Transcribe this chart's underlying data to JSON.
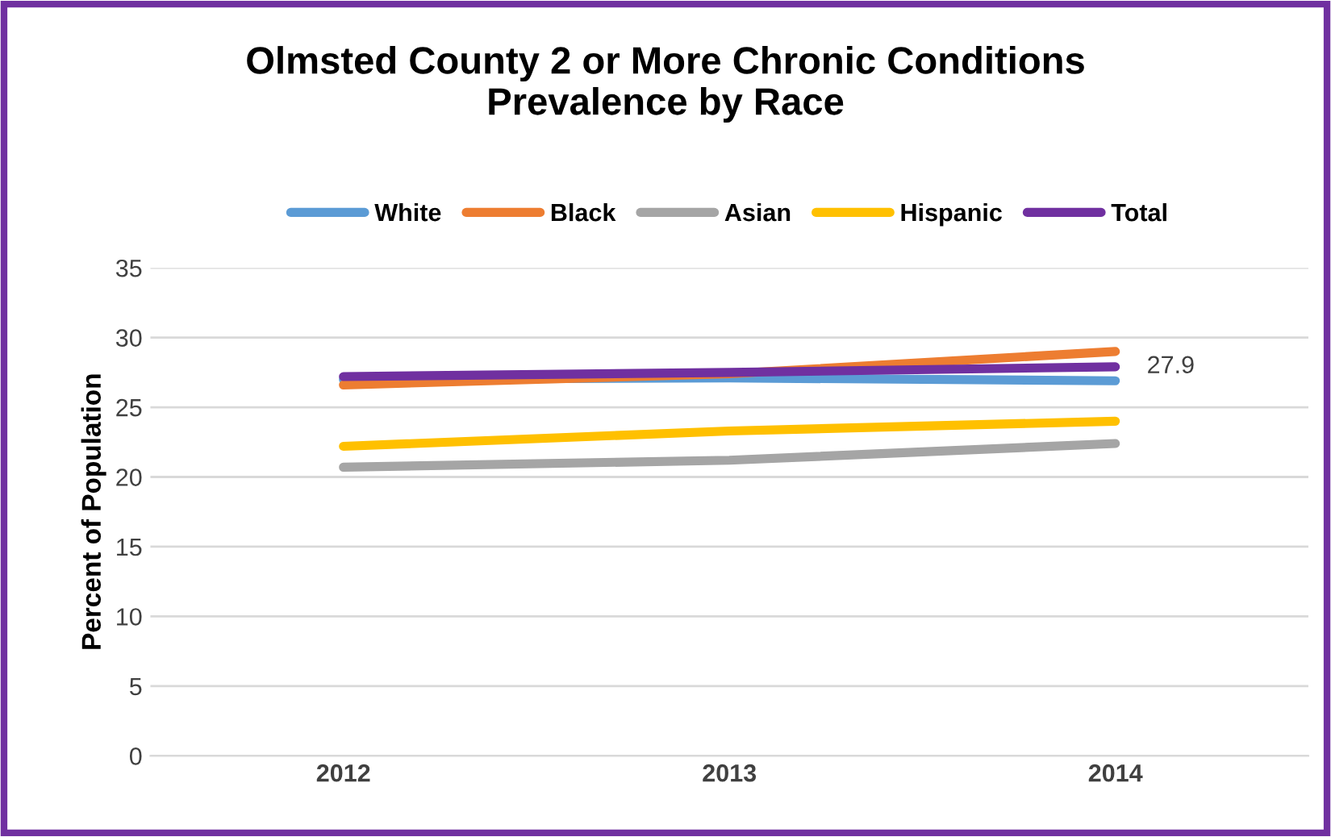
{
  "chart_data": {
    "type": "line",
    "title": "Olmsted County 2 or More Chronic Conditions\nPrevalence by Race",
    "ylabel": "Percent of Population",
    "categories": [
      "2012",
      "2013",
      "2014"
    ],
    "series": [
      {
        "name": "White",
        "color": "#5b9bd5",
        "values": [
          27.0,
          27.1,
          26.9
        ]
      },
      {
        "name": "Black",
        "color": "#ed7d31",
        "values": [
          26.6,
          27.4,
          29.0
        ]
      },
      {
        "name": "Asian",
        "color": "#a5a5a5",
        "values": [
          20.7,
          21.2,
          22.4
        ]
      },
      {
        "name": "Hispanic",
        "color": "#ffc000",
        "values": [
          22.2,
          23.3,
          24.0
        ]
      },
      {
        "name": "Total",
        "color": "#7030a0",
        "values": [
          27.2,
          27.5,
          27.9
        ],
        "value_labels": [
          null,
          null,
          "27.9"
        ]
      }
    ],
    "ylim": [
      0,
      35
    ],
    "yticks": [
      0,
      5,
      10,
      15,
      20,
      25,
      30,
      35
    ],
    "grid": "y",
    "legend": "top"
  }
}
